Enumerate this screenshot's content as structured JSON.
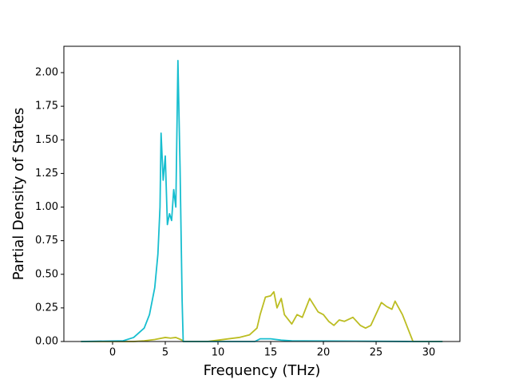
{
  "chart_data": {
    "type": "line",
    "xlabel": "Frequency (THz)",
    "ylabel": "Partial Density of States",
    "xlim": [
      -4.62,
      32.95
    ],
    "ylim": [
      0,
      2.196
    ],
    "xticks": [
      0,
      5,
      10,
      15,
      20,
      25,
      30
    ],
    "yticks": [
      {
        "value": 0,
        "label": "0.00"
      },
      {
        "value": 0.25,
        "label": "0.25"
      },
      {
        "value": 0.5,
        "label": "0.50"
      },
      {
        "value": 0.75,
        "label": "0.75"
      },
      {
        "value": 1.0,
        "label": "1.00"
      },
      {
        "value": 1.25,
        "label": "1.25"
      },
      {
        "value": 1.5,
        "label": "1.50"
      },
      {
        "value": 1.75,
        "label": "1.75"
      },
      {
        "value": 2.0,
        "label": "2.00"
      }
    ],
    "series": [
      {
        "color": "#bcbd22",
        "x": [
          -3,
          2,
          3,
          4,
          5,
          5.5,
          6,
          6.3,
          6.6,
          6.7,
          9,
          10,
          12,
          13,
          13.7,
          14,
          14.5,
          15,
          15.3,
          15.6,
          16,
          16.3,
          17,
          17.5,
          18,
          18.7,
          19.5,
          20,
          20.5,
          21,
          21.5,
          22,
          22.8,
          23.5,
          24,
          24.5,
          25.5,
          26,
          26.5,
          26.8,
          27.5,
          28,
          28.5,
          31.3
        ],
        "values": [
          0,
          0,
          0.005,
          0.015,
          0.03,
          0.025,
          0.03,
          0.02,
          0.01,
          0,
          0,
          0.01,
          0.03,
          0.05,
          0.1,
          0.2,
          0.33,
          0.34,
          0.37,
          0.25,
          0.32,
          0.2,
          0.13,
          0.2,
          0.18,
          0.32,
          0.22,
          0.2,
          0.15,
          0.12,
          0.16,
          0.15,
          0.18,
          0.12,
          0.1,
          0.12,
          0.29,
          0.26,
          0.24,
          0.3,
          0.2,
          0.1,
          0,
          0
        ]
      },
      {
        "color": "#17becf",
        "x": [
          -3,
          1,
          2,
          3,
          3.5,
          4,
          4.3,
          4.5,
          4.6,
          4.8,
          5,
          5.2,
          5.4,
          5.6,
          5.8,
          6,
          6.2,
          6.4,
          6.6,
          6.7,
          13.5,
          14,
          15,
          16,
          17,
          28.5,
          31.3
        ],
        "values": [
          0,
          0.005,
          0.03,
          0.1,
          0.2,
          0.4,
          0.65,
          1.0,
          1.55,
          1.2,
          1.38,
          0.87,
          0.95,
          0.9,
          1.13,
          1.0,
          2.09,
          1.3,
          0.3,
          0,
          0,
          0.02,
          0.02,
          0.01,
          0.005,
          0,
          0
        ]
      }
    ]
  }
}
